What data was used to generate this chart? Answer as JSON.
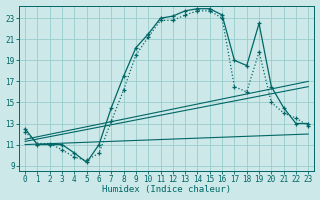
{
  "xlabel": "Humidex (Indice chaleur)",
  "bg_color": "#cce8e8",
  "line_color": "#006666",
  "grid_color": "#99cccc",
  "xlim": [
    -0.5,
    23.5
  ],
  "ylim": [
    8.5,
    24.2
  ],
  "xticks": [
    0,
    1,
    2,
    3,
    4,
    5,
    6,
    7,
    8,
    9,
    10,
    11,
    12,
    13,
    14,
    15,
    16,
    17,
    18,
    19,
    20,
    21,
    22,
    23
  ],
  "yticks": [
    9,
    11,
    13,
    15,
    17,
    19,
    21,
    23
  ],
  "curve1_x": [
    0,
    1,
    2,
    3,
    4,
    5,
    6,
    7,
    8,
    9,
    10,
    11,
    12,
    13,
    14,
    15,
    16,
    17,
    18,
    19,
    20,
    21,
    22,
    23
  ],
  "curve1_y": [
    12.5,
    11.0,
    11.0,
    11.0,
    10.2,
    9.3,
    11.0,
    14.5,
    17.5,
    20.2,
    21.5,
    23.0,
    23.2,
    23.7,
    23.9,
    23.9,
    23.3,
    19.0,
    18.5,
    22.5,
    16.5,
    14.5,
    13.0,
    13.0
  ],
  "curve2_x": [
    0,
    1,
    2,
    3,
    4,
    5,
    6,
    7,
    8,
    9,
    10,
    11,
    12,
    13,
    14,
    15,
    16,
    17,
    18,
    19,
    20,
    21,
    22,
    23
  ],
  "curve2_y": [
    12.2,
    11.1,
    11.1,
    10.5,
    9.8,
    9.5,
    10.2,
    13.2,
    16.2,
    19.5,
    21.2,
    22.8,
    22.8,
    23.3,
    23.7,
    23.7,
    23.0,
    16.5,
    16.0,
    19.8,
    15.0,
    14.0,
    13.5,
    12.8
  ],
  "line1_x": [
    0,
    23
  ],
  "line1_y": [
    11.5,
    17.0
  ],
  "line2_x": [
    0,
    23
  ],
  "line2_y": [
    11.3,
    16.5
  ],
  "line3_x": [
    0,
    23
  ],
  "line3_y": [
    11.0,
    12.0
  ]
}
